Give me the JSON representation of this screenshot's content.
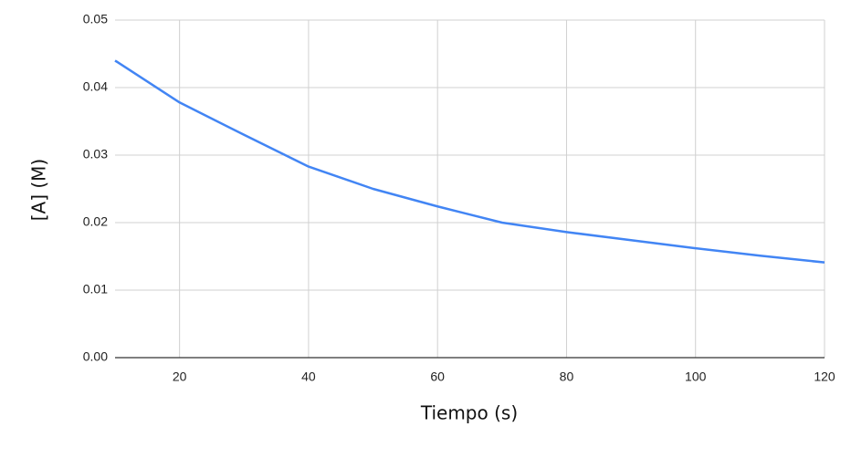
{
  "chart_data": {
    "type": "line",
    "x_label": "Tiempo (s)",
    "y_label": "[A] (M)",
    "x": [
      10,
      20,
      30,
      40,
      50,
      60,
      70,
      80,
      90,
      100,
      110,
      120
    ],
    "series": [
      {
        "name": "[A]",
        "color": "#4285f4",
        "values": [
          0.044,
          0.0378,
          0.033,
          0.0283,
          0.025,
          0.0224,
          0.02,
          0.0186,
          0.0174,
          0.0162,
          0.0151,
          0.0141
        ]
      }
    ],
    "xlim": [
      10,
      120
    ],
    "xticks": [
      20,
      40,
      60,
      80,
      100,
      120
    ],
    "ylim": [
      0,
      0.05
    ],
    "yticks": [
      {
        "value": 0,
        "label": "0.00"
      },
      0.01,
      0.02,
      0.03,
      0.04,
      0.05
    ],
    "grid": true
  }
}
